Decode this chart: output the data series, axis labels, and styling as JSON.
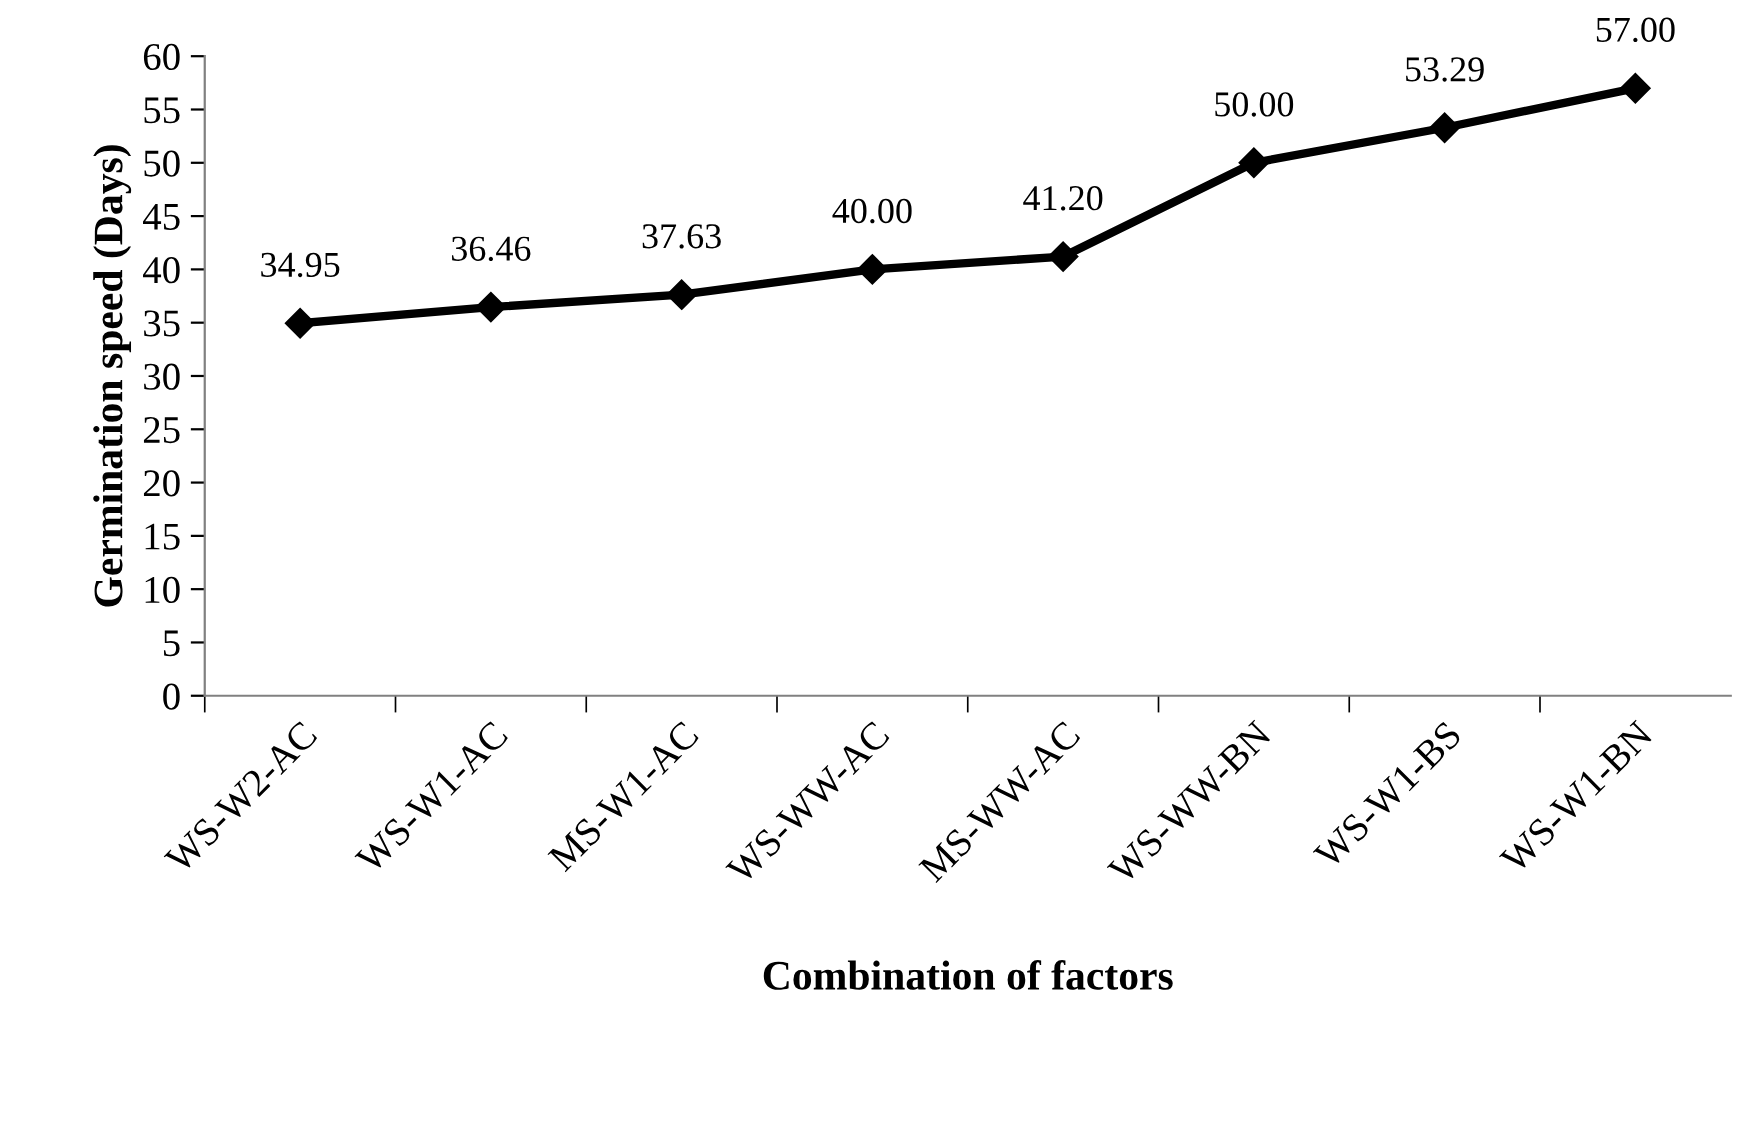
{
  "chart_data": {
    "type": "line",
    "xlabel": "Combination of factors",
    "ylabel": "Germination speed (Days)",
    "categories": [
      "WS-W2-AC",
      "WS-W1-AC",
      "MS-W1-AC",
      "WS-WW-AC",
      "MS-WW-AC",
      "WS-WW-BN",
      "WS-W1-BS",
      "WS-W1-BN"
    ],
    "series": [
      {
        "color": "#000000",
        "values": [
          34.95,
          36.46,
          37.63,
          40.0,
          41.2,
          50.0,
          53.29,
          57.0
        ]
      }
    ],
    "value_labels": [
      "34.95",
      "36.46",
      "37.63",
      "40.00",
      "41.20",
      "50.00",
      "53.29",
      "57.00"
    ],
    "ylim": [
      0,
      60
    ],
    "yticks": [
      0,
      5,
      10,
      15,
      20,
      25,
      30,
      35,
      40,
      45,
      50,
      55,
      60
    ],
    "marker": "diamond",
    "line_style": "solid",
    "grid": false,
    "legend": false
  }
}
